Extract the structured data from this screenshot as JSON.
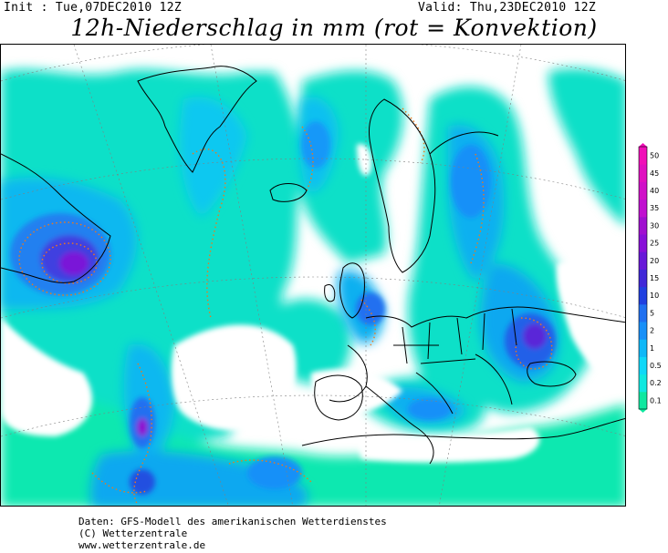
{
  "header": {
    "init": "Init : Tue,07DEC2010 12Z",
    "valid": "Valid: Thu,23DEC2010 12Z",
    "title": "12h-Niederschlag in mm (rot = Konvektion)"
  },
  "legend": {
    "levels": [
      "0.1",
      "0.2",
      "0.5",
      "1",
      "2",
      "5",
      "10",
      "15",
      "20",
      "25",
      "30",
      "35",
      "40",
      "45",
      "50"
    ],
    "colors": [
      "#10e8a0",
      "#10e8e0",
      "#10d8f8",
      "#10b8f8",
      "#1890f8",
      "#2070f0",
      "#2040e0",
      "#4028d8",
      "#6818d8",
      "#8810d8",
      "#a010d0",
      "#c010d0",
      "#d010c8",
      "#e010c0",
      "#f010b8"
    ]
  },
  "footer": {
    "line1": "Daten: GFS-Modell des amerikanischen Wetterdienstes",
    "line2": "(C) Wetterzentrale",
    "line3": "www.wetterzentrale.de"
  }
}
